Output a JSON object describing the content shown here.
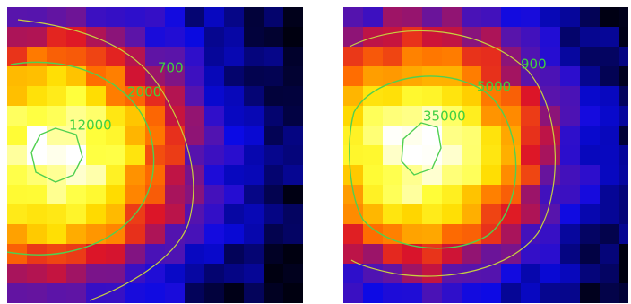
{
  "panels": [
    {
      "contours": [
        {
          "label": "700"
        },
        {
          "label": "2000"
        },
        {
          "label": "12000"
        }
      ]
    },
    {
      "contours": [
        {
          "label": "900"
        },
        {
          "label": "5000"
        },
        {
          "label": "35000"
        }
      ]
    }
  ]
}
